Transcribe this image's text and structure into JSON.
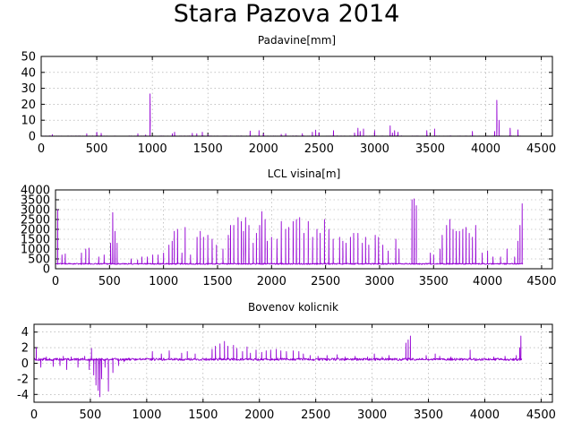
{
  "title": "Stara Pazova 2014",
  "colors": {
    "series": "#9400d3",
    "axis": "#000000",
    "grid": "#a0a0a0"
  },
  "chart_data": [
    {
      "type": "line",
      "title": "Padavine[mm]",
      "series_color": "#9400d3",
      "grid": true,
      "xlim": [
        0,
        4600
      ],
      "ylim": [
        0,
        50
      ],
      "xticks": [
        0,
        500,
        1000,
        1500,
        2000,
        2500,
        3000,
        3500,
        4000,
        4500
      ],
      "yticks": [
        0,
        10,
        20,
        30,
        40,
        50
      ],
      "xtick_labels": [
        "0",
        "500",
        "1000",
        "1500",
        "2000",
        "2500",
        "3000",
        "3500",
        "4000",
        "4500"
      ],
      "ytick_labels": [
        "0",
        "10",
        "20",
        "30",
        "40",
        "50"
      ],
      "x_max": 4330,
      "baseline": 0,
      "noise": 0.3,
      "spikes": [
        {
          "x": 100,
          "y": 1
        },
        {
          "x": 410,
          "y": 1.5
        },
        {
          "x": 500,
          "y": 2.5
        },
        {
          "x": 540,
          "y": 1.8
        },
        {
          "x": 870,
          "y": 1.5
        },
        {
          "x": 940,
          "y": 0.8
        },
        {
          "x": 980,
          "y": 26.5
        },
        {
          "x": 1180,
          "y": 1.5
        },
        {
          "x": 1200,
          "y": 2.5
        },
        {
          "x": 1360,
          "y": 1.8
        },
        {
          "x": 1400,
          "y": 1.5
        },
        {
          "x": 1450,
          "y": 2.5
        },
        {
          "x": 1500,
          "y": 0.8
        },
        {
          "x": 1880,
          "y": 3.2
        },
        {
          "x": 1960,
          "y": 3.5
        },
        {
          "x": 2000,
          "y": 1.5
        },
        {
          "x": 2160,
          "y": 1.2
        },
        {
          "x": 2200,
          "y": 1.5
        },
        {
          "x": 2350,
          "y": 1.6
        },
        {
          "x": 2440,
          "y": 2.5
        },
        {
          "x": 2470,
          "y": 3.8
        },
        {
          "x": 2500,
          "y": 2.2
        },
        {
          "x": 2630,
          "y": 3.5
        },
        {
          "x": 2820,
          "y": 2
        },
        {
          "x": 2850,
          "y": 5
        },
        {
          "x": 2870,
          "y": 3
        },
        {
          "x": 2900,
          "y": 4.5
        },
        {
          "x": 3000,
          "y": 3.5
        },
        {
          "x": 3140,
          "y": 6.5
        },
        {
          "x": 3160,
          "y": 2
        },
        {
          "x": 3180,
          "y": 3.5
        },
        {
          "x": 3210,
          "y": 2.5
        },
        {
          "x": 3470,
          "y": 3.5
        },
        {
          "x": 3540,
          "y": 4.5
        },
        {
          "x": 3880,
          "y": 3
        },
        {
          "x": 4080,
          "y": 3
        },
        {
          "x": 4100,
          "y": 22.5
        },
        {
          "x": 4120,
          "y": 10
        },
        {
          "x": 4220,
          "y": 5
        },
        {
          "x": 4290,
          "y": 4
        },
        {
          "x": 4330,
          "y": 4.5
        }
      ]
    },
    {
      "type": "line",
      "title": "LCL visina[m]",
      "series_color": "#9400d3",
      "grid": true,
      "xlim": [
        0,
        4600
      ],
      "ylim": [
        0,
        4000
      ],
      "xticks": [
        0,
        500,
        1000,
        1500,
        2000,
        2500,
        3000,
        3500,
        4000,
        4500
      ],
      "yticks": [
        0,
        500,
        1000,
        1500,
        2000,
        2500,
        3000,
        3500,
        4000
      ],
      "xtick_labels": [
        "0",
        "500",
        "1000",
        "1500",
        "2000",
        "2500",
        "3000",
        "3500",
        "4000",
        "4500"
      ],
      "ytick_labels": [
        "0",
        "500",
        "1000",
        "1500",
        "2000",
        "2500",
        "3000",
        "3500",
        "4000"
      ],
      "x_max": 4330,
      "baseline": 250,
      "noise": 30,
      "spikes": [
        {
          "x": 20,
          "y": 3000
        },
        {
          "x": 60,
          "y": 700
        },
        {
          "x": 90,
          "y": 750
        },
        {
          "x": 240,
          "y": 800
        },
        {
          "x": 280,
          "y": 1000
        },
        {
          "x": 310,
          "y": 1050
        },
        {
          "x": 400,
          "y": 600
        },
        {
          "x": 450,
          "y": 700
        },
        {
          "x": 510,
          "y": 1300
        },
        {
          "x": 530,
          "y": 2850
        },
        {
          "x": 550,
          "y": 1900
        },
        {
          "x": 570,
          "y": 1300
        },
        {
          "x": 700,
          "y": 500
        },
        {
          "x": 760,
          "y": 450
        },
        {
          "x": 800,
          "y": 600
        },
        {
          "x": 850,
          "y": 600
        },
        {
          "x": 900,
          "y": 700
        },
        {
          "x": 950,
          "y": 700
        },
        {
          "x": 1000,
          "y": 800
        },
        {
          "x": 1050,
          "y": 1200
        },
        {
          "x": 1080,
          "y": 1400
        },
        {
          "x": 1100,
          "y": 1900
        },
        {
          "x": 1130,
          "y": 2000
        },
        {
          "x": 1170,
          "y": 800
        },
        {
          "x": 1200,
          "y": 2100
        },
        {
          "x": 1250,
          "y": 700
        },
        {
          "x": 1310,
          "y": 1600
        },
        {
          "x": 1340,
          "y": 1900
        },
        {
          "x": 1370,
          "y": 1600
        },
        {
          "x": 1410,
          "y": 1700
        },
        {
          "x": 1450,
          "y": 1500
        },
        {
          "x": 1490,
          "y": 1200
        },
        {
          "x": 1550,
          "y": 1000
        },
        {
          "x": 1600,
          "y": 1700
        },
        {
          "x": 1620,
          "y": 2200
        },
        {
          "x": 1650,
          "y": 2200
        },
        {
          "x": 1690,
          "y": 2600
        },
        {
          "x": 1720,
          "y": 2400
        },
        {
          "x": 1740,
          "y": 1900
        },
        {
          "x": 1760,
          "y": 2600
        },
        {
          "x": 1790,
          "y": 2200
        },
        {
          "x": 1830,
          "y": 1300
        },
        {
          "x": 1860,
          "y": 1800
        },
        {
          "x": 1890,
          "y": 2200
        },
        {
          "x": 1910,
          "y": 2900
        },
        {
          "x": 1940,
          "y": 2500
        },
        {
          "x": 1960,
          "y": 1400
        },
        {
          "x": 2000,
          "y": 1600
        },
        {
          "x": 2050,
          "y": 1500
        },
        {
          "x": 2090,
          "y": 2400
        },
        {
          "x": 2130,
          "y": 2000
        },
        {
          "x": 2160,
          "y": 2100
        },
        {
          "x": 2200,
          "y": 2400
        },
        {
          "x": 2230,
          "y": 2500
        },
        {
          "x": 2260,
          "y": 2600
        },
        {
          "x": 2300,
          "y": 1800
        },
        {
          "x": 2340,
          "y": 2400
        },
        {
          "x": 2380,
          "y": 1600
        },
        {
          "x": 2420,
          "y": 2000
        },
        {
          "x": 2450,
          "y": 1800
        },
        {
          "x": 2490,
          "y": 2500
        },
        {
          "x": 2530,
          "y": 2000
        },
        {
          "x": 2570,
          "y": 1500
        },
        {
          "x": 2630,
          "y": 1600
        },
        {
          "x": 2660,
          "y": 1400
        },
        {
          "x": 2690,
          "y": 1300
        },
        {
          "x": 2730,
          "y": 1600
        },
        {
          "x": 2760,
          "y": 1800
        },
        {
          "x": 2800,
          "y": 1800
        },
        {
          "x": 2840,
          "y": 1300
        },
        {
          "x": 2870,
          "y": 1600
        },
        {
          "x": 2900,
          "y": 1200
        },
        {
          "x": 2960,
          "y": 1700
        },
        {
          "x": 2990,
          "y": 1600
        },
        {
          "x": 3030,
          "y": 1200
        },
        {
          "x": 3080,
          "y": 900
        },
        {
          "x": 3150,
          "y": 1500
        },
        {
          "x": 3180,
          "y": 1000
        },
        {
          "x": 3300,
          "y": 3500
        },
        {
          "x": 3320,
          "y": 3550
        },
        {
          "x": 3340,
          "y": 3200
        },
        {
          "x": 3470,
          "y": 800
        },
        {
          "x": 3500,
          "y": 700
        },
        {
          "x": 3560,
          "y": 1000
        },
        {
          "x": 3580,
          "y": 1700
        },
        {
          "x": 3620,
          "y": 2200
        },
        {
          "x": 3650,
          "y": 2500
        },
        {
          "x": 3680,
          "y": 2000
        },
        {
          "x": 3710,
          "y": 1900
        },
        {
          "x": 3740,
          "y": 1900
        },
        {
          "x": 3770,
          "y": 2000
        },
        {
          "x": 3800,
          "y": 2100
        },
        {
          "x": 3830,
          "y": 1800
        },
        {
          "x": 3860,
          "y": 1600
        },
        {
          "x": 3890,
          "y": 2200
        },
        {
          "x": 3950,
          "y": 800
        },
        {
          "x": 4000,
          "y": 900
        },
        {
          "x": 4050,
          "y": 600
        },
        {
          "x": 4120,
          "y": 600
        },
        {
          "x": 4180,
          "y": 1000
        },
        {
          "x": 4250,
          "y": 600
        },
        {
          "x": 4280,
          "y": 1400
        },
        {
          "x": 4300,
          "y": 2200
        },
        {
          "x": 4320,
          "y": 3300
        },
        {
          "x": 4330,
          "y": 3200
        }
      ]
    },
    {
      "type": "line",
      "title": "Bovenov kolicnik",
      "series_color": "#9400d3",
      "grid": true,
      "xlim": [
        0,
        4600
      ],
      "ylim": [
        -5,
        5
      ],
      "xticks": [
        0,
        500,
        1000,
        1500,
        2000,
        2500,
        3000,
        3500,
        4000,
        4500
      ],
      "yticks": [
        -4,
        -2,
        0,
        2,
        4
      ],
      "xtick_labels": [
        "0",
        "500",
        "1000",
        "1500",
        "2000",
        "2500",
        "3000",
        "3500",
        "4000",
        "4500"
      ],
      "ytick_labels": [
        "-4",
        "-2",
        "0",
        "2",
        "4"
      ],
      "x_max": 4330,
      "baseline": 0.5,
      "noise": 0.15,
      "spikes": [
        {
          "x": 20,
          "y": 2
        },
        {
          "x": 60,
          "y": -0.5
        },
        {
          "x": 110,
          "y": 0.8
        },
        {
          "x": 170,
          "y": -0.4
        },
        {
          "x": 230,
          "y": -0.3
        },
        {
          "x": 260,
          "y": 0.9
        },
        {
          "x": 290,
          "y": -0.8
        },
        {
          "x": 330,
          "y": 0.8
        },
        {
          "x": 390,
          "y": -0.5
        },
        {
          "x": 450,
          "y": 0.9
        },
        {
          "x": 490,
          "y": -0.8
        },
        {
          "x": 510,
          "y": 1.9
        },
        {
          "x": 530,
          "y": -1.5
        },
        {
          "x": 550,
          "y": -2.8
        },
        {
          "x": 570,
          "y": -3.5
        },
        {
          "x": 585,
          "y": -4.3
        },
        {
          "x": 600,
          "y": -2
        },
        {
          "x": 630,
          "y": -0.5
        },
        {
          "x": 660,
          "y": -3.6
        },
        {
          "x": 700,
          "y": -1.2
        },
        {
          "x": 750,
          "y": -0.3
        },
        {
          "x": 800,
          "y": 0.2
        },
        {
          "x": 900,
          "y": 0.6
        },
        {
          "x": 1050,
          "y": 1.5
        },
        {
          "x": 1130,
          "y": 1.2
        },
        {
          "x": 1200,
          "y": 1.6
        },
        {
          "x": 1310,
          "y": 1.3
        },
        {
          "x": 1360,
          "y": 1.5
        },
        {
          "x": 1430,
          "y": 1.2
        },
        {
          "x": 1580,
          "y": 1.8
        },
        {
          "x": 1610,
          "y": 2.2
        },
        {
          "x": 1650,
          "y": 2.5
        },
        {
          "x": 1690,
          "y": 2.8
        },
        {
          "x": 1720,
          "y": 2.2
        },
        {
          "x": 1770,
          "y": 2.3
        },
        {
          "x": 1800,
          "y": 1.9
        },
        {
          "x": 1850,
          "y": 1.5
        },
        {
          "x": 1890,
          "y": 2.1
        },
        {
          "x": 1920,
          "y": 1.3
        },
        {
          "x": 1970,
          "y": 1.7
        },
        {
          "x": 2020,
          "y": 1.4
        },
        {
          "x": 2060,
          "y": 1.6
        },
        {
          "x": 2100,
          "y": 1.7
        },
        {
          "x": 2150,
          "y": 1.8
        },
        {
          "x": 2190,
          "y": 1.6
        },
        {
          "x": 2240,
          "y": 1.5
        },
        {
          "x": 2300,
          "y": 1.6
        },
        {
          "x": 2350,
          "y": 1.5
        },
        {
          "x": 2390,
          "y": 1.2
        },
        {
          "x": 2450,
          "y": 1
        },
        {
          "x": 2520,
          "y": 0.9
        },
        {
          "x": 2600,
          "y": 1
        },
        {
          "x": 2690,
          "y": 1.1
        },
        {
          "x": 2760,
          "y": 0.8
        },
        {
          "x": 2850,
          "y": 0.9
        },
        {
          "x": 2960,
          "y": 0.8
        },
        {
          "x": 3020,
          "y": 1.2
        },
        {
          "x": 3090,
          "y": 0.8
        },
        {
          "x": 3150,
          "y": 1
        },
        {
          "x": 3300,
          "y": 2.6
        },
        {
          "x": 3320,
          "y": 3
        },
        {
          "x": 3340,
          "y": 3.5
        },
        {
          "x": 3480,
          "y": 1
        },
        {
          "x": 3560,
          "y": 1.2
        },
        {
          "x": 3600,
          "y": 0.9
        },
        {
          "x": 3700,
          "y": 0.8
        },
        {
          "x": 3870,
          "y": 1.7
        },
        {
          "x": 4080,
          "y": 0.8
        },
        {
          "x": 4180,
          "y": 0.9
        },
        {
          "x": 4280,
          "y": 1
        },
        {
          "x": 4310,
          "y": 2
        },
        {
          "x": 4320,
          "y": 3.5
        },
        {
          "x": 4330,
          "y": 2.5
        }
      ]
    }
  ]
}
